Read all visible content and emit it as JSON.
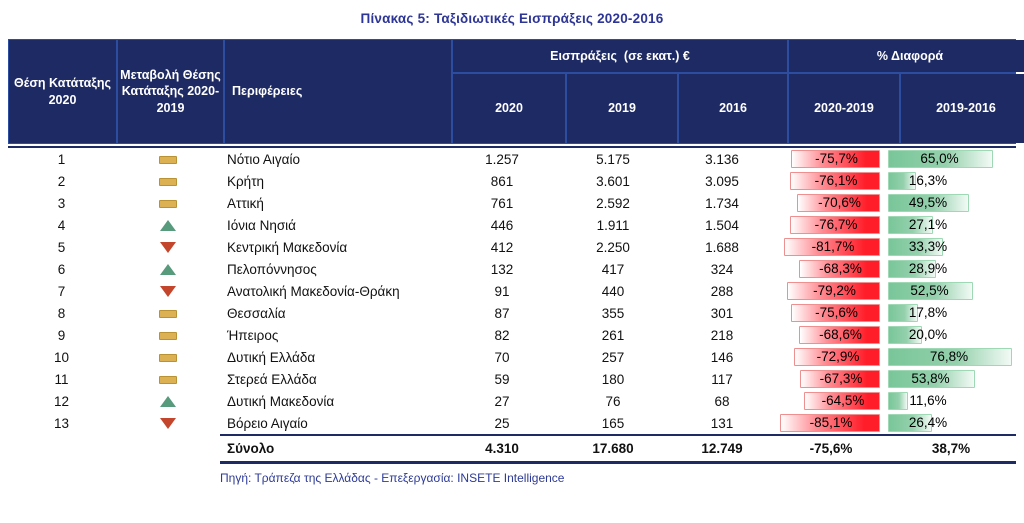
{
  "title": "Πίνακας 5: Ταξιδιωτικές Εισπράξεις 2020-2016",
  "colors": {
    "header_bg": "#1e2a64",
    "header_grid": "#2d4da1",
    "title_text": "#2d3596",
    "footer_text": "#2d3a96",
    "negative_bar": "#ff1d29",
    "negative_bar_border": "#f08f8f",
    "positive_bar": "#79c699",
    "positive_bar_border": "#9fd8b5",
    "no_change_icon": "#dcb153",
    "up_icon": "#579a7c",
    "down_icon": "#c2452c"
  },
  "table": {
    "headers": {
      "rank": "Θέση Κατάταξης 2020",
      "change": "Μεταβολή Θέσης Κατάταξης 2020-2019",
      "region": "Περιφέρειες",
      "receipts_group": "Εισπράξεις  (σε εκατ.) €",
      "diff_group": "% Διαφορά",
      "years": [
        "2020",
        "2019",
        "2016"
      ],
      "diffs": [
        "2020-2019",
        "2019-2016"
      ]
    },
    "rows": [
      {
        "rank": "1",
        "change": "same",
        "region": "Νότιο Αιγαίο",
        "y2020": "1.257",
        "y2019": "5.175",
        "y2016": "3.136",
        "diff1": "-75,7%",
        "diff2": "65,0%"
      },
      {
        "rank": "2",
        "change": "same",
        "region": "Κρήτη",
        "y2020": "861",
        "y2019": "3.601",
        "y2016": "3.095",
        "diff1": "-76,1%",
        "diff2": "16,3%"
      },
      {
        "rank": "3",
        "change": "same",
        "region": "Αττική",
        "y2020": "761",
        "y2019": "2.592",
        "y2016": "1.734",
        "diff1": "-70,6%",
        "diff2": "49,5%"
      },
      {
        "rank": "4",
        "change": "up",
        "region": "Ιόνια Νησιά",
        "y2020": "446",
        "y2019": "1.911",
        "y2016": "1.504",
        "diff1": "-76,7%",
        "diff2": "27,1%"
      },
      {
        "rank": "5",
        "change": "down",
        "region": "Κεντρική Μακεδονία",
        "y2020": "412",
        "y2019": "2.250",
        "y2016": "1.688",
        "diff1": "-81,7%",
        "diff2": "33,3%"
      },
      {
        "rank": "6",
        "change": "up",
        "region": "Πελοπόννησος",
        "y2020": "132",
        "y2019": "417",
        "y2016": "324",
        "diff1": "-68,3%",
        "diff2": "28,9%"
      },
      {
        "rank": "7",
        "change": "down",
        "region": "Ανατολική Μακεδονία-Θράκη",
        "y2020": "91",
        "y2019": "440",
        "y2016": "288",
        "diff1": "-79,2%",
        "diff2": "52,5%"
      },
      {
        "rank": "8",
        "change": "same",
        "region": "Θεσσαλία",
        "y2020": "87",
        "y2019": "355",
        "y2016": "301",
        "diff1": "-75,6%",
        "diff2": "17,8%"
      },
      {
        "rank": "9",
        "change": "same",
        "region": "Ήπειρος",
        "y2020": "82",
        "y2019": "261",
        "y2016": "218",
        "diff1": "-68,6%",
        "diff2": "20,0%"
      },
      {
        "rank": "10",
        "change": "same",
        "region": "Δυτική Ελλάδα",
        "y2020": "70",
        "y2019": "257",
        "y2016": "146",
        "diff1": "-72,9%",
        "diff2": "76,8%"
      },
      {
        "rank": "11",
        "change": "same",
        "region": "Στερεά Ελλάδα",
        "y2020": "59",
        "y2019": "180",
        "y2016": "117",
        "diff1": "-67,3%",
        "diff2": "53,8%"
      },
      {
        "rank": "12",
        "change": "up",
        "region": "Δυτική Μακεδονία",
        "y2020": "27",
        "y2019": "76",
        "y2016": "68",
        "diff1": "-64,5%",
        "diff2": "11,6%"
      },
      {
        "rank": "13",
        "change": "down",
        "region": "Βόρειο Αιγαίο",
        "y2020": "25",
        "y2019": "165",
        "y2016": "131",
        "diff1": "-85,1%",
        "diff2": "26,4%"
      }
    ],
    "total": {
      "label": "Σύνολο",
      "y2020": "4.310",
      "y2019": "17.680",
      "y2016": "12.749",
      "diff1": "-75,6%",
      "diff2": "38,7%"
    }
  },
  "footer": "Πηγή: Τράπεζα της Ελλάδας - Επεξεργασία: INSETE Intelligence",
  "chart_data": {
    "type": "table",
    "title": "Πίνακας 5: Ταξιδιωτικές Εισπράξεις 2020-2016",
    "columns": [
      "Θέση Κατάταξης 2020",
      "Μεταβολή Θέσης Κατάταξης 2020-2019",
      "Περιφέρειες",
      "Εισπράξεις 2020 (εκατ. €)",
      "Εισπράξεις 2019 (εκατ. €)",
      "Εισπράξεις 2016 (εκατ. €)",
      "% Διαφορά 2020-2019",
      "% Διαφορά 2019-2016"
    ],
    "rows": [
      [
        1,
        "=",
        "Νότιο Αιγαίο",
        1257,
        5175,
        3136,
        -75.7,
        65.0
      ],
      [
        2,
        "=",
        "Κρήτη",
        861,
        3601,
        3095,
        -76.1,
        16.3
      ],
      [
        3,
        "=",
        "Αττική",
        761,
        2592,
        1734,
        -70.6,
        49.5
      ],
      [
        4,
        "up",
        "Ιόνια Νησιά",
        446,
        1911,
        1504,
        -76.7,
        27.1
      ],
      [
        5,
        "down",
        "Κεντρική Μακεδονία",
        412,
        2250,
        1688,
        -81.7,
        33.3
      ],
      [
        6,
        "up",
        "Πελοπόννησος",
        132,
        417,
        324,
        -68.3,
        28.9
      ],
      [
        7,
        "down",
        "Ανατολική Μακεδονία-Θράκη",
        91,
        440,
        288,
        -79.2,
        52.5
      ],
      [
        8,
        "=",
        "Θεσσαλία",
        87,
        355,
        301,
        -75.6,
        17.8
      ],
      [
        9,
        "=",
        "Ήπειρος",
        82,
        261,
        218,
        -68.6,
        20.0
      ],
      [
        10,
        "=",
        "Δυτική Ελλάδα",
        70,
        257,
        146,
        -72.9,
        76.8
      ],
      [
        11,
        "=",
        "Στερεά Ελλάδα",
        59,
        180,
        117,
        -67.3,
        53.8
      ],
      [
        12,
        "up",
        "Δυτική Μακεδονία",
        27,
        76,
        68,
        -64.5,
        11.6
      ],
      [
        13,
        "down",
        "Βόρειο Αιγαίο",
        25,
        165,
        131,
        -85.1,
        26.4
      ]
    ],
    "total_row": [
      "Σύνολο",
      4310,
      17680,
      12749,
      -75.6,
      38.7
    ]
  }
}
